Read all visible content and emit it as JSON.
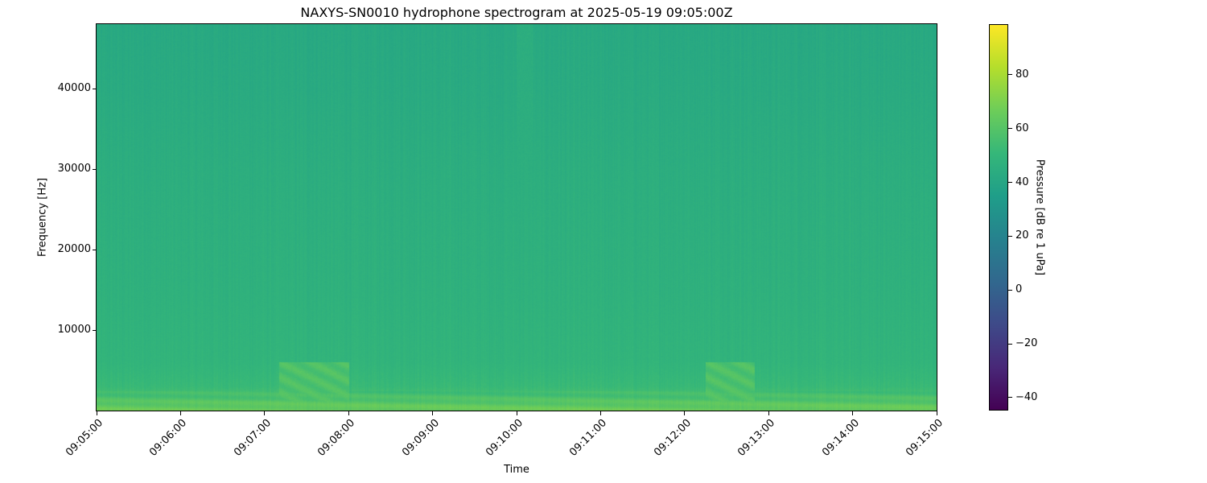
{
  "chart_data": {
    "type": "heatmap",
    "title": "NAXYS-SN0010 hydrophone spectrogram at 2025-05-19 09:05:00Z",
    "xlabel": "Time",
    "ylabel": "Frequency [Hz]",
    "xlim": [
      "09:05:00",
      "09:15:00"
    ],
    "ylim": [
      0,
      48000
    ],
    "x_ticks": [
      "09:05:00",
      "09:06:00",
      "09:07:00",
      "09:08:00",
      "09:09:00",
      "09:10:00",
      "09:11:00",
      "09:12:00",
      "09:13:00",
      "09:14:00",
      "09:15:00"
    ],
    "y_ticks": [
      10000,
      20000,
      30000,
      40000
    ],
    "y_tick_labels": [
      "10000",
      "20000",
      "30000",
      "40000"
    ],
    "colormap": "viridis",
    "colorbar": {
      "label": "Pressure [dB re 1 uPa]",
      "range": [
        -44.8,
        98.8
      ],
      "ticks": [
        -40,
        -20,
        0,
        20,
        40,
        60,
        80
      ],
      "tick_labels": [
        "−40",
        "−20",
        "0",
        "20",
        "40",
        "60",
        "80"
      ]
    },
    "grid": false,
    "mean_level_profile": [
      {
        "freq_hz": 0,
        "db": 66
      },
      {
        "freq_hz": 500,
        "db": 64
      },
      {
        "freq_hz": 1500,
        "db": 58
      },
      {
        "freq_hz": 3000,
        "db": 52
      },
      {
        "freq_hz": 6000,
        "db": 49
      },
      {
        "freq_hz": 15000,
        "db": 47
      },
      {
        "freq_hz": 30000,
        "db": 45
      },
      {
        "freq_hz": 40000,
        "db": 43
      },
      {
        "freq_hz": 48000,
        "db": 42
      }
    ],
    "events": [
      {
        "start": "09:07:10",
        "end": "09:08:00",
        "freq_max_hz": 6000,
        "db": 62
      },
      {
        "start": "09:12:15",
        "end": "09:12:50",
        "freq_max_hz": 6000,
        "db": 62
      },
      {
        "start": "09:10:00",
        "end": "09:10:12",
        "freq_min_hz": 13000,
        "freq_max_hz": 48000,
        "db": 49
      }
    ]
  }
}
